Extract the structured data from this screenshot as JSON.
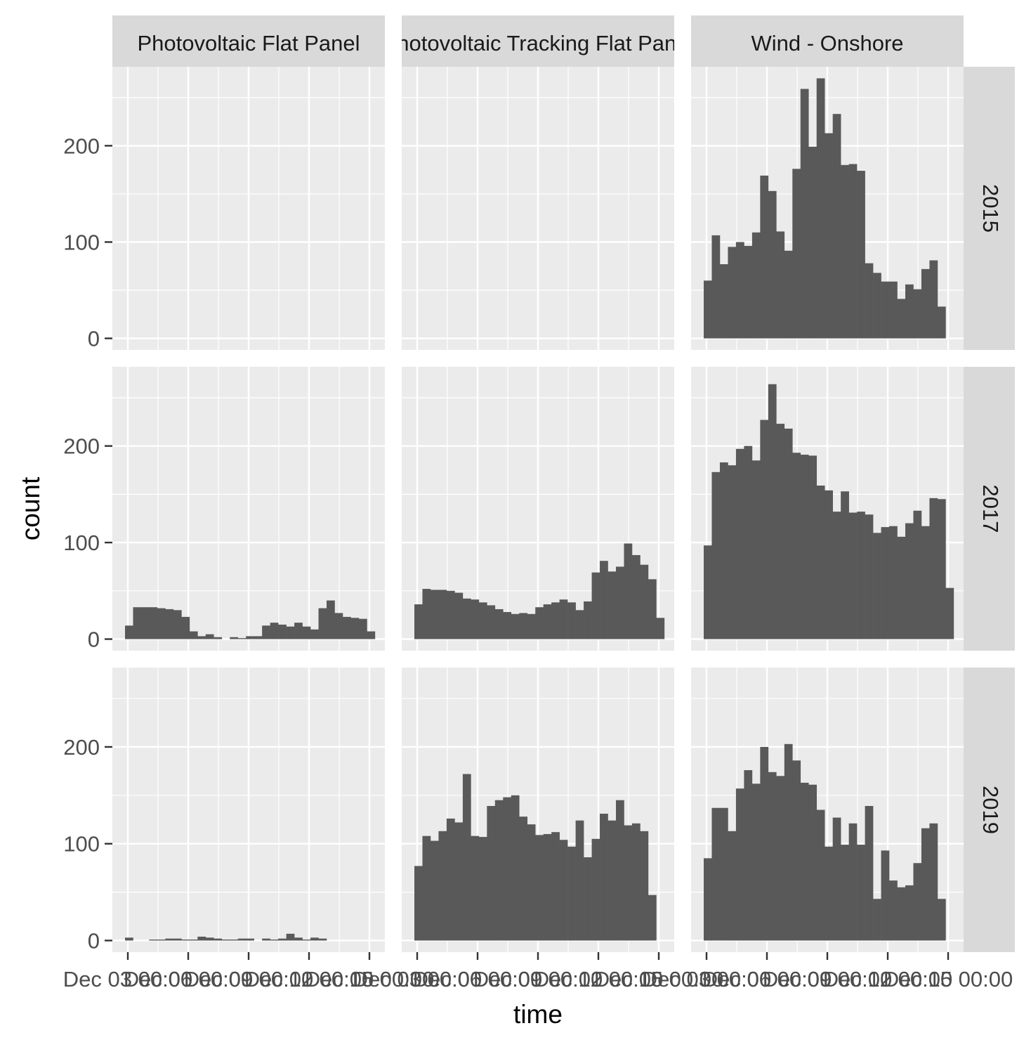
{
  "chart_data": {
    "type": "bar",
    "subtype": "faceted histogram",
    "xlabel": "time",
    "ylabel": "count",
    "ylim": [
      -12,
      282
    ],
    "y_ticks": [
      0,
      100,
      200
    ],
    "x_tick_labels": [
      "Dec 03 00:00",
      "Dec 06 00:00",
      "Dec 09 00:00",
      "Dec 12 00:00",
      "Dec 15 00:00"
    ],
    "x_tick_labels_note": "tick labels overlap in the original image",
    "columns": [
      "Photovoltaic Flat Panel",
      "Photovoltaic Tracking  Flat Panel",
      "Wind - Onshore"
    ],
    "rows": [
      "2015",
      "2017",
      "2019"
    ],
    "grid": true,
    "legend": "none",
    "colors": {
      "panel_bg": "#ebebeb",
      "strip_bg": "#d9d9d9",
      "bar": "#595959",
      "grid": "#ffffff",
      "text": "#4d4d4d"
    },
    "panels": [
      {
        "row": "2015",
        "column": "Photovoltaic Flat Panel",
        "counts": []
      },
      {
        "row": "2015",
        "column": "Photovoltaic Tracking  Flat Panel",
        "counts": []
      },
      {
        "row": "2015",
        "column": "Wind - Onshore",
        "counts": [
          60,
          107,
          77,
          95,
          100,
          96,
          110,
          169,
          153,
          111,
          91,
          176,
          259,
          199,
          270,
          213,
          233,
          180,
          181,
          174,
          78,
          68,
          59,
          59,
          41,
          56,
          51,
          72,
          81,
          33
        ]
      },
      {
        "row": "2017",
        "column": "Photovoltaic Flat Panel",
        "counts": [
          14,
          33,
          33,
          33,
          32,
          31,
          30,
          23,
          8,
          3,
          5,
          2,
          0,
          2,
          1,
          3,
          3,
          14,
          17,
          15,
          13,
          17,
          13,
          10,
          32,
          40,
          27,
          23,
          22,
          21,
          8
        ]
      },
      {
        "row": "2017",
        "column": "Photovoltaic Tracking  Flat Panel",
        "counts": [
          36,
          52,
          51,
          51,
          50,
          48,
          42,
          41,
          38,
          35,
          31,
          28,
          26,
          27,
          26,
          33,
          36,
          38,
          41,
          38,
          30,
          39,
          69,
          81,
          70,
          75,
          99,
          87,
          77,
          62,
          22
        ]
      },
      {
        "row": "2017",
        "column": "Wind - Onshore",
        "counts": [
          97,
          173,
          183,
          180,
          197,
          200,
          185,
          227,
          264,
          223,
          218,
          193,
          191,
          190,
          159,
          154,
          132,
          153,
          131,
          132,
          129,
          110,
          116,
          117,
          106,
          120,
          133,
          117,
          146,
          145,
          53
        ]
      },
      {
        "row": "2019",
        "column": "Photovoltaic Flat Panel",
        "counts": [
          3,
          0,
          0,
          1,
          1,
          2,
          2,
          1,
          1,
          4,
          3,
          2,
          1,
          1,
          2,
          2,
          0,
          2,
          1,
          2,
          7,
          3,
          1,
          3,
          2,
          0,
          0,
          0,
          0,
          0,
          0
        ]
      },
      {
        "row": "2019",
        "column": "Photovoltaic Tracking  Flat Panel",
        "counts": [
          77,
          108,
          103,
          113,
          126,
          122,
          172,
          108,
          107,
          139,
          145,
          148,
          150,
          128,
          120,
          109,
          110,
          112,
          104,
          97,
          124,
          86,
          105,
          131,
          124,
          145,
          119,
          121,
          113,
          47
        ]
      },
      {
        "row": "2019",
        "column": "Wind - Onshore",
        "counts": [
          85,
          137,
          137,
          113,
          157,
          176,
          162,
          200,
          174,
          170,
          203,
          186,
          163,
          161,
          135,
          97,
          127,
          99,
          121,
          99,
          139,
          43,
          93,
          62,
          55,
          57,
          80,
          116,
          121,
          43
        ]
      }
    ]
  }
}
